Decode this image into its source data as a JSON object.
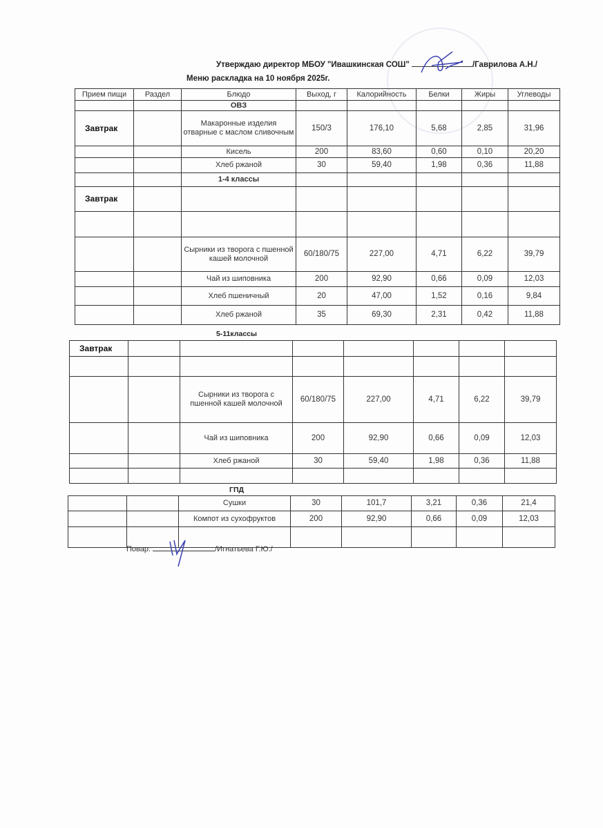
{
  "header": {
    "approval": "Утверждаю директор МБОУ \"Ивашкинская СОШ\"",
    "approver": "/Гаврилова А.Н./",
    "title": "Меню раскладка на 10 ноября  2025г."
  },
  "columns": [
    "Прием пищи",
    "Раздел",
    "Блюдо",
    "Выход, г",
    "Калорийность",
    "Белки",
    "Жиры",
    "Углеводы"
  ],
  "table1": {
    "rows": [
      [
        "",
        "",
        "ОВЗ",
        "",
        "",
        "",
        "",
        ""
      ],
      [
        "Завтрак",
        "",
        "Макаронные изделия отварные с маслом сливочным",
        "150/3",
        "176,10",
        "5,68",
        "2,85",
        "31,96"
      ],
      [
        "",
        "",
        "Кисель",
        "200",
        "83,60",
        "0,60",
        "0,10",
        "20,20"
      ],
      [
        "",
        "",
        "Хлеб ржаной",
        "30",
        "59,40",
        "1,98",
        "0,36",
        "11,88"
      ],
      [
        "",
        "",
        "1-4 классы",
        "",
        "",
        "",
        "",
        ""
      ],
      [
        "Завтрак",
        "",
        "",
        "",
        "",
        "",
        "",
        ""
      ],
      [
        "",
        "",
        "",
        "",
        "",
        "",
        "",
        ""
      ],
      [
        "",
        "",
        "Сырники из творога с пшенной кашей молочной",
        "60/180/75",
        "227,00",
        "4,71",
        "6,22",
        "39,79"
      ],
      [
        "",
        "",
        "Чай из шиповника",
        "200",
        "92,90",
        "0,66",
        "0,09",
        "12,03"
      ],
      [
        "",
        "",
        "Хлеб пшеничный",
        "20",
        "47,00",
        "1,52",
        "0,16",
        "9,84"
      ],
      [
        "",
        "",
        "Хлеб ржаной",
        "35",
        "69,30",
        "2,31",
        "0,42",
        "11,88"
      ]
    ]
  },
  "section2_label": "5-11классы",
  "table2": {
    "rows": [
      [
        "Завтрак",
        "",
        "",
        "",
        "",
        "",
        "",
        ""
      ],
      [
        "",
        "",
        "",
        "",
        "",
        "",
        "",
        ""
      ],
      [
        "",
        "",
        "Сырники из творога с пшенной кашей молочной",
        "60/180/75",
        "227,00",
        "4,71",
        "6,22",
        "39,79"
      ],
      [
        "",
        "",
        "Чай из шиповника",
        "200",
        "92,90",
        "0,66",
        "0,09",
        "12,03"
      ],
      [
        "",
        "",
        "Хлеб ржаной",
        "30",
        "59,40",
        "1,98",
        "0,36",
        "11,88"
      ],
      [
        "",
        "",
        "",
        "",
        "",
        "",
        "",
        ""
      ]
    ]
  },
  "section3_label": "ГПД",
  "table3": {
    "rows": [
      [
        "",
        "",
        "Сушки",
        "30",
        "101,7",
        "3,21",
        "0,36",
        "21,4"
      ],
      [
        "",
        "",
        "Компот из сухофруктов",
        "200",
        "92,90",
        "0,66",
        "0,09",
        "12,03"
      ],
      [
        "",
        "",
        "",
        "",
        "",
        "",
        "",
        ""
      ]
    ]
  },
  "footer": {
    "cook_label": "Повар:",
    "cook_name": "/Игнатьева Г.Ю./"
  },
  "colors": {
    "ink": "#222222",
    "signature": "#3a3fb0"
  }
}
